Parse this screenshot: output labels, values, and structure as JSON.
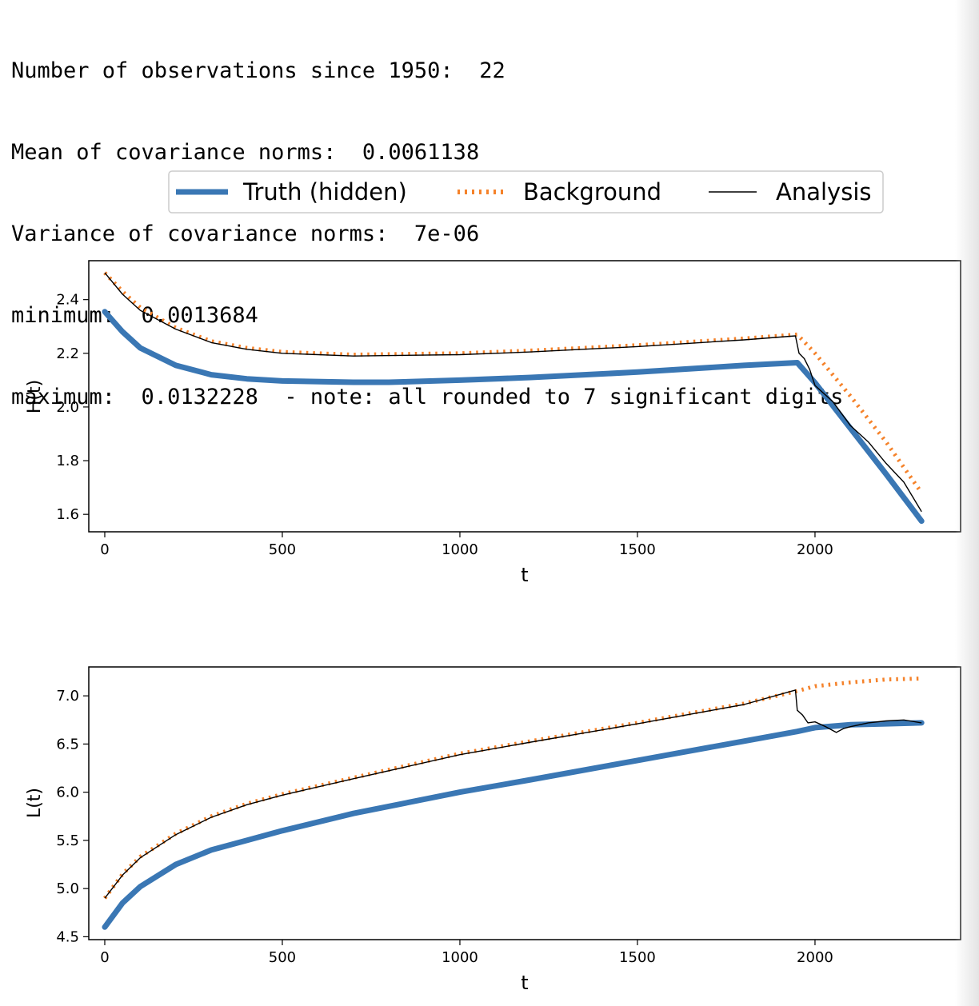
{
  "console": {
    "lines": [
      "Number of observations since 1950:  22",
      "Mean of covariance norms:  0.0061138",
      "Variance of covariance norms:  7e-06",
      "minimum:  0.0013684",
      "maximum:  0.0132228  - note: all rounded to 7 significant digits"
    ]
  },
  "colors": {
    "truth": "#3a77b4",
    "background": "#f5822a",
    "analysis": "#000000",
    "axes": "#000000"
  },
  "legend": {
    "entries": [
      {
        "label": "Truth (hidden)",
        "style": "thick-solid",
        "color": "#3a77b4"
      },
      {
        "label": "Background",
        "style": "dotted",
        "color": "#f5822a"
      },
      {
        "label": "Analysis",
        "style": "thin-solid",
        "color": "#000000"
      }
    ]
  },
  "chart_data": [
    {
      "type": "line",
      "xlabel": "t",
      "ylabel": "H(t)",
      "xlim": [
        -45,
        2410
      ],
      "ylim": [
        1.535,
        2.545
      ],
      "xticks": [
        0,
        500,
        1000,
        1500,
        2000
      ],
      "yticks": [
        1.6,
        1.8,
        2.0,
        2.2,
        2.4
      ],
      "ytick_labels": [
        "1.6",
        "1.8",
        "2.0",
        "2.2",
        "2.4"
      ],
      "series": [
        {
          "name": "Truth (hidden)",
          "style": "thick-solid",
          "x": [
            0,
            50,
            100,
            200,
            300,
            400,
            500,
            700,
            800,
            1000,
            1200,
            1500,
            1800,
            1950,
            2000,
            2100,
            2200,
            2300
          ],
          "y": [
            2.355,
            2.28,
            2.22,
            2.155,
            2.12,
            2.105,
            2.097,
            2.092,
            2.092,
            2.1,
            2.11,
            2.13,
            2.155,
            2.165,
            2.09,
            1.92,
            1.75,
            1.575
          ]
        },
        {
          "name": "Background",
          "style": "dotted",
          "x": [
            0,
            50,
            100,
            200,
            300,
            400,
            500,
            700,
            1000,
            1200,
            1500,
            1800,
            1950,
            2000,
            2100,
            2200,
            2300
          ],
          "y": [
            2.5,
            2.43,
            2.37,
            2.295,
            2.245,
            2.22,
            2.205,
            2.195,
            2.2,
            2.21,
            2.23,
            2.255,
            2.27,
            2.2,
            2.04,
            1.87,
            1.68
          ]
        },
        {
          "name": "Analysis",
          "style": "thin-solid",
          "x": [
            0,
            50,
            100,
            200,
            300,
            400,
            500,
            700,
            1000,
            1200,
            1500,
            1800,
            1945,
            1955,
            1970,
            1985,
            2000,
            2050,
            2100,
            2150,
            2200,
            2250,
            2300
          ],
          "y": [
            2.5,
            2.42,
            2.36,
            2.29,
            2.24,
            2.215,
            2.2,
            2.19,
            2.195,
            2.205,
            2.225,
            2.25,
            2.265,
            2.2,
            2.18,
            2.14,
            2.08,
            2.02,
            1.93,
            1.87,
            1.79,
            1.72,
            1.61
          ]
        }
      ]
    },
    {
      "type": "line",
      "xlabel": "t",
      "ylabel": "L(t)",
      "xlim": [
        -45,
        2410
      ],
      "ylim": [
        4.47,
        7.3
      ],
      "xticks": [
        0,
        500,
        1000,
        1500,
        2000
      ],
      "yticks": [
        4.5,
        5.0,
        5.5,
        6.0,
        6.5,
        7.0
      ],
      "ytick_labels": [
        "4.5",
        "5.0",
        "5.5",
        "6.0",
        "6.5",
        "7.0"
      ],
      "series": [
        {
          "name": "Truth (hidden)",
          "style": "thick-solid",
          "x": [
            0,
            50,
            100,
            200,
            300,
            400,
            500,
            700,
            1000,
            1200,
            1500,
            1800,
            1950,
            2000,
            2100,
            2200,
            2300
          ],
          "y": [
            4.6,
            4.85,
            5.02,
            5.25,
            5.4,
            5.5,
            5.6,
            5.78,
            6.0,
            6.13,
            6.33,
            6.53,
            6.63,
            6.67,
            6.7,
            6.71,
            6.72
          ]
        },
        {
          "name": "Background",
          "style": "dotted",
          "x": [
            0,
            50,
            100,
            200,
            300,
            400,
            500,
            700,
            1000,
            1200,
            1500,
            1800,
            1950,
            2000,
            2100,
            2200,
            2300
          ],
          "y": [
            4.9,
            5.15,
            5.33,
            5.57,
            5.75,
            5.88,
            5.98,
            6.15,
            6.4,
            6.53,
            6.72,
            6.92,
            7.05,
            7.1,
            7.14,
            7.17,
            7.18
          ]
        },
        {
          "name": "Analysis",
          "style": "thin-solid",
          "x": [
            0,
            50,
            100,
            200,
            300,
            400,
            500,
            700,
            1000,
            1200,
            1500,
            1800,
            1945,
            1950,
            1965,
            1980,
            2000,
            2030,
            2060,
            2080,
            2100,
            2150,
            2200,
            2250,
            2300
          ],
          "y": [
            4.9,
            5.14,
            5.32,
            5.56,
            5.74,
            5.87,
            5.97,
            6.14,
            6.39,
            6.52,
            6.71,
            6.91,
            7.06,
            6.85,
            6.8,
            6.72,
            6.73,
            6.68,
            6.62,
            6.66,
            6.68,
            6.72,
            6.74,
            6.75,
            6.72
          ]
        }
      ]
    }
  ]
}
